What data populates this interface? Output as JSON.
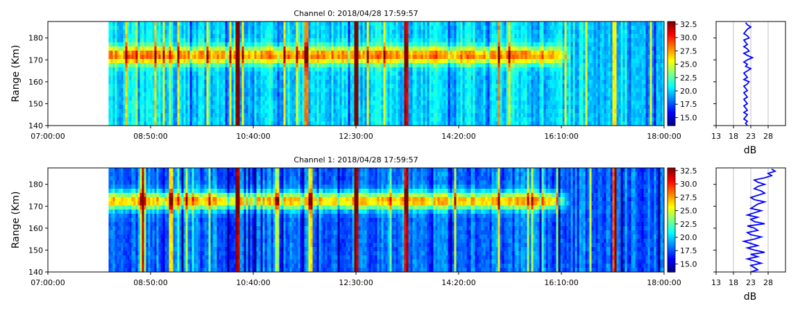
{
  "chart_data": [
    {
      "type": "heatmap",
      "title": "Channel 0: 2018/04/28 17:59:57",
      "ylabel": "Range (Km)",
      "xlabel": "",
      "x_ticks": [
        "07:00:00",
        "08:50:00",
        "10:40:00",
        "12:30:00",
        "14:20:00",
        "16:10:00",
        "18:00:00"
      ],
      "xlim": [
        "07:00:00",
        "18:00:00"
      ],
      "data_start": "08:05:00",
      "y_ticks": [
        140,
        150,
        160,
        170,
        180
      ],
      "ylim": [
        140,
        187.5
      ],
      "colorbar": {
        "colormap": "jet",
        "min": 13.5,
        "max": 33.0,
        "ticks": [
          "15.0",
          "17.5",
          "20.0",
          "22.5",
          "25.0",
          "27.5",
          "30.0",
          "32.5"
        ]
      },
      "features": {
        "background_db": 20,
        "layer_center_km": 172,
        "layer_width_km": 4,
        "layer_peak_db": 28,
        "layer_extent": [
          "08:05:00",
          "16:00:00"
        ],
        "strong_stripes": [
          "10:22:00",
          "12:30:00",
          "13:22:00"
        ],
        "moderate_stripes": [
          "11:35:00",
          "15:02:00",
          "17:05:00"
        ]
      },
      "profile": {
        "xlabel": "dB",
        "x_ticks": [
          13,
          18,
          23,
          28
        ],
        "xlim": [
          13,
          33
        ],
        "grid": true,
        "range_km": [
          140,
          187
        ],
        "values": [
          22,
          21.5,
          22,
          21,
          21.5,
          22,
          21,
          22,
          21.5,
          21,
          22,
          21.5,
          21,
          22,
          21.5,
          21,
          22,
          21.5,
          21,
          22,
          22.5,
          21,
          22,
          21.5,
          21,
          22,
          23,
          21.5,
          22,
          21,
          22,
          23.5,
          22,
          21,
          22.5,
          22,
          21,
          22,
          21.5,
          21,
          22.5,
          22,
          21,
          21.5,
          22,
          23,
          22,
          21.5
        ]
      }
    },
    {
      "type": "heatmap",
      "title": "Channel 1: 2018/04/28 17:59:57",
      "ylabel": "Range (Km)",
      "xlabel": "",
      "x_ticks": [
        "07:00:00",
        "08:50:00",
        "10:40:00",
        "12:30:00",
        "14:20:00",
        "16:10:00",
        "18:00:00"
      ],
      "xlim": [
        "07:00:00",
        "18:00:00"
      ],
      "data_start": "08:05:00",
      "y_ticks": [
        140,
        150,
        160,
        170,
        180
      ],
      "ylim": [
        140,
        187.5
      ],
      "colorbar": {
        "colormap": "jet",
        "min": 13.5,
        "max": 33.0,
        "ticks": [
          "15.0",
          "17.5",
          "20.0",
          "22.5",
          "25.0",
          "27.5",
          "30.0",
          "32.5"
        ]
      },
      "features": {
        "background_db": 18,
        "layer_center_km": 172.5,
        "layer_width_km": 4,
        "layer_peak_db": 27,
        "layer_extent": [
          "08:05:00",
          "16:00:00"
        ],
        "strong_stripes": [
          "10:22:00",
          "12:30:00",
          "13:22:00",
          "17:05:00"
        ],
        "moderate_stripes": [
          "08:40:00",
          "09:10:00",
          "11:05:00",
          "11:40:00",
          "15:02:00",
          "16:40:00"
        ]
      },
      "profile": {
        "xlabel": "dB",
        "x_ticks": [
          13,
          18,
          23,
          28
        ],
        "xlim": [
          13,
          33
        ],
        "grid": true,
        "range_km": [
          140,
          187
        ],
        "values": [
          23,
          25,
          24,
          23,
          26,
          24,
          22,
          25,
          23,
          27,
          24,
          22,
          25,
          23,
          21,
          24,
          26,
          23,
          22,
          25,
          24,
          22,
          27,
          24,
          23,
          25,
          22,
          24,
          26,
          23,
          24,
          25,
          27,
          24,
          23,
          25,
          27,
          26,
          24,
          25,
          27,
          25,
          24,
          27,
          29,
          28,
          30,
          29
        ]
      }
    }
  ]
}
